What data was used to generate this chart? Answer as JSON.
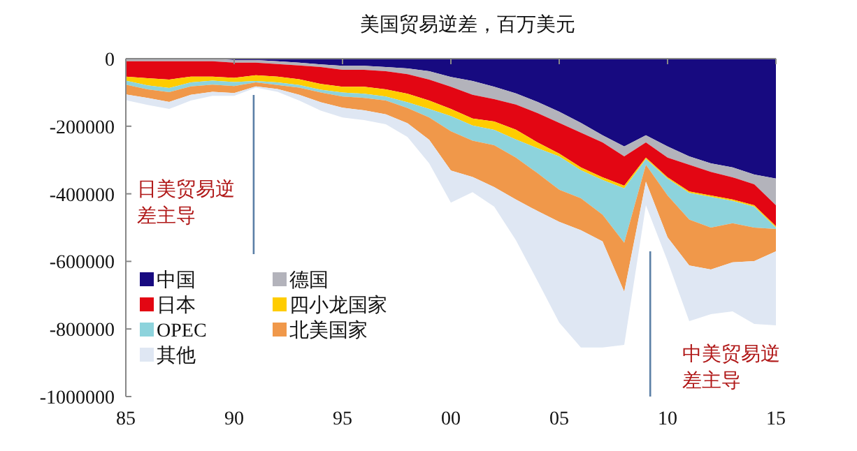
{
  "chart_data": {
    "type": "area",
    "stacked": true,
    "title": "美国贸易逆差，百万美元",
    "x": [
      1985,
      1986,
      1987,
      1988,
      1989,
      1990,
      1991,
      1992,
      1993,
      1994,
      1995,
      1996,
      1997,
      1998,
      1999,
      2000,
      2001,
      2002,
      2003,
      2004,
      2005,
      2006,
      2007,
      2008,
      2009,
      2010,
      2011,
      2012,
      2013,
      2014,
      2015
    ],
    "xlim": [
      1985,
      2015
    ],
    "xticks": [
      {
        "value": 1985,
        "label": "85"
      },
      {
        "value": 1990,
        "label": "90"
      },
      {
        "value": 1995,
        "label": "95"
      },
      {
        "value": 2000,
        "label": "00"
      },
      {
        "value": 2005,
        "label": "05"
      },
      {
        "value": 2010,
        "label": "10"
      },
      {
        "value": 2015,
        "label": "15"
      }
    ],
    "ylim": [
      -1000000,
      0
    ],
    "yticks": [
      0,
      -200000,
      -400000,
      -600000,
      -800000,
      -1000000
    ],
    "legend": "bottom left",
    "series": [
      {
        "name": "中国",
        "color": "#170a80",
        "values": [
          0,
          0,
          0,
          0,
          0,
          -4000,
          -4000,
          -8000,
          -12000,
          -17000,
          -21000,
          -21000,
          -25000,
          -29000,
          -37000,
          -54000,
          -66000,
          -83000,
          -103000,
          -128000,
          -157000,
          -190000,
          -227000,
          -260000,
          -227000,
          -260000,
          -289000,
          -310000,
          -322000,
          -343000,
          -355000
        ]
      },
      {
        "name": "德国",
        "color": "#b3b3bb",
        "values": [
          -8000,
          -8000,
          -8000,
          -8000,
          -8000,
          -8000,
          -8000,
          -8000,
          -8000,
          -8000,
          -12000,
          -12000,
          -12000,
          -17000,
          -25000,
          -29000,
          -41000,
          -37000,
          -33000,
          -33000,
          -33000,
          -29000,
          -21000,
          -29000,
          -21000,
          -33000,
          -25000,
          -25000,
          -29000,
          -29000,
          -79000
        ]
      },
      {
        "name": "日本",
        "color": "#e30613",
        "values": [
          -45000,
          -50000,
          -54000,
          -45000,
          -45000,
          -45000,
          -37000,
          -37000,
          -41000,
          -50000,
          -50000,
          -50000,
          -54000,
          -58000,
          -62000,
          -66000,
          -70000,
          -66000,
          -74000,
          -87000,
          -91000,
          -103000,
          -103000,
          -87000,
          -45000,
          -58000,
          -79000,
          -70000,
          -66000,
          -62000,
          -62000
        ]
      },
      {
        "name": "四小龙国家",
        "color": "#ffcc00",
        "values": [
          -12000,
          -21000,
          -25000,
          -17000,
          -12000,
          -12000,
          -17000,
          -17000,
          -17000,
          -17000,
          -17000,
          -21000,
          -21000,
          -25000,
          -25000,
          -21000,
          -21000,
          -25000,
          -29000,
          -17000,
          -8000,
          -8000,
          -8000,
          -8000,
          -4000,
          -4000,
          -4000,
          -4000,
          -4000,
          -4000,
          -4000
        ]
      },
      {
        "name": "OPEC",
        "color": "#8dd3dc",
        "values": [
          -12000,
          -12000,
          -12000,
          -12000,
          -12000,
          -12000,
          -4000,
          -8000,
          -8000,
          -8000,
          -12000,
          -12000,
          -12000,
          -17000,
          -25000,
          -45000,
          -45000,
          -45000,
          -54000,
          -74000,
          -99000,
          -83000,
          -103000,
          -161000,
          -17000,
          -50000,
          -79000,
          -91000,
          -66000,
          -62000,
          -4000
        ]
      },
      {
        "name": "北美国家",
        "color": "#f0984a",
        "values": [
          -29000,
          -25000,
          -29000,
          -25000,
          -21000,
          -21000,
          -12000,
          -12000,
          -21000,
          -29000,
          -33000,
          -37000,
          -41000,
          -45000,
          -66000,
          -116000,
          -107000,
          -124000,
          -124000,
          -112000,
          -95000,
          -95000,
          -79000,
          -145000,
          -50000,
          -124000,
          -136000,
          -124000,
          -116000,
          -99000,
          -66000
        ]
      },
      {
        "name": "其他",
        "color": "#dfe7f3",
        "values": [
          -17000,
          -21000,
          -21000,
          -17000,
          -12000,
          -8000,
          -4000,
          -8000,
          -17000,
          -25000,
          -29000,
          -29000,
          -29000,
          -41000,
          -70000,
          -95000,
          -45000,
          -58000,
          -120000,
          -207000,
          -298000,
          -347000,
          -314000,
          -157000,
          -70000,
          -70000,
          -165000,
          -132000,
          -145000,
          -186000,
          -219000
        ]
      }
    ],
    "ref_lines": [
      {
        "axis": "x",
        "value": 1990.9,
        "label": "日美贸易逆差主导",
        "color": "#5b7fa6"
      },
      {
        "axis": "x",
        "value": 2009.2,
        "label": "中美贸易逆差主导",
        "color": "#5b7fa6"
      }
    ]
  }
}
